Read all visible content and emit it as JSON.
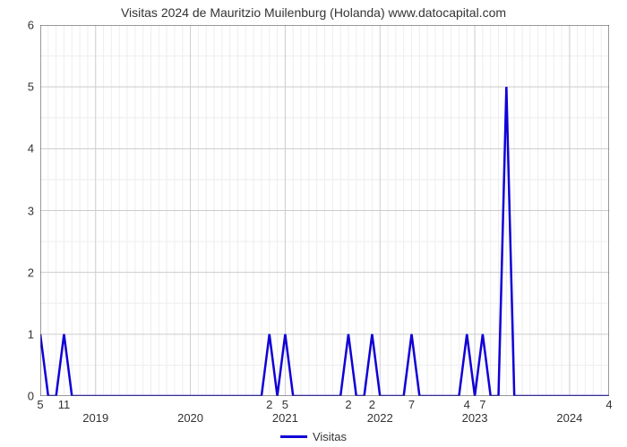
{
  "chart": {
    "type": "line",
    "title": "Visitas 2024 de Mauritzio Muilenburg (Holanda) www.datocapital.com",
    "title_fontsize": 14,
    "title_color": "#333333",
    "background_color": "#ffffff",
    "plot_border_color": "#555555",
    "grid_color_major": "#cccccc",
    "grid_color_minor": "#eeeeee",
    "ylim": [
      0,
      6
    ],
    "ytick_step": 1,
    "yticks": [
      0,
      1,
      2,
      3,
      4,
      5,
      6
    ],
    "x_points": 73,
    "x_year_markers": [
      {
        "label": "2019",
        "x": 7
      },
      {
        "label": "2020",
        "x": 19
      },
      {
        "label": "2021",
        "x": 31
      },
      {
        "label": "2022",
        "x": 43
      },
      {
        "label": "2023",
        "x": 55
      },
      {
        "label": "2024",
        "x": 67
      }
    ],
    "x_major_ticks": [
      7,
      19,
      31,
      43,
      55,
      67
    ],
    "x_minor_tick_step": 1,
    "series": {
      "label": "Visitas",
      "color": "#1000d6",
      "line_width": 2.5,
      "data": [
        1,
        0,
        0,
        1,
        0,
        0,
        0,
        0,
        0,
        0,
        0,
        0,
        0,
        0,
        0,
        0,
        0,
        0,
        0,
        0,
        0,
        0,
        0,
        0,
        0,
        0,
        0,
        0,
        0,
        1,
        0,
        1,
        0,
        0,
        0,
        0,
        0,
        0,
        0,
        1,
        0,
        0,
        1,
        0,
        0,
        0,
        0,
        1,
        0,
        0,
        0,
        0,
        0,
        0,
        1,
        0,
        1,
        0,
        0,
        5,
        0,
        0,
        0,
        0,
        0,
        0,
        0,
        0,
        0,
        0,
        0,
        0,
        0
      ],
      "point_labels": [
        {
          "x": 0,
          "label": "5"
        },
        {
          "x": 3,
          "label": "11"
        },
        {
          "x": 29,
          "label": "2"
        },
        {
          "x": 31,
          "label": "5"
        },
        {
          "x": 39,
          "label": "2"
        },
        {
          "x": 42,
          "label": "2"
        },
        {
          "x": 47,
          "label": "7"
        },
        {
          "x": 54,
          "label": "4"
        },
        {
          "x": 56,
          "label": "7"
        },
        {
          "x": 72,
          "label": "4"
        }
      ]
    },
    "legend_label": "Visitas"
  }
}
